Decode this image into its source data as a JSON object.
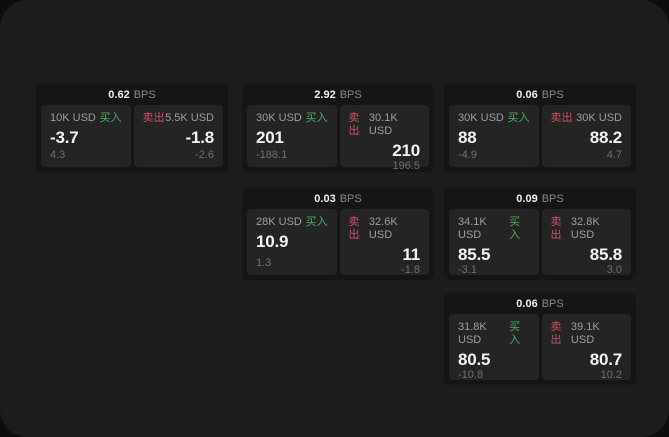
{
  "page": {
    "background": "#0d0d0d",
    "window_background": "#1c1c1c"
  },
  "labels": {
    "buy": "买入",
    "sell": "卖出",
    "bps": "BPS"
  },
  "colors": {
    "buy": "#4cae5f",
    "sell": "#cf4f66"
  },
  "cards": [
    {
      "bps": "0.62",
      "buy": {
        "amount": "10K USD",
        "value": "-3.7",
        "delta": "4.3"
      },
      "sell": {
        "amount": "5.5K USD",
        "value": "-1.8",
        "delta": "-2.6"
      }
    },
    {
      "bps": "2.92",
      "buy": {
        "amount": "30K USD",
        "value": "201",
        "delta": "-188.1"
      },
      "sell": {
        "amount": "30.1K USD",
        "value": "210",
        "delta": "196.5"
      }
    },
    {
      "bps": "0.06",
      "buy": {
        "amount": "30K USD",
        "value": "88",
        "delta": "-4.9"
      },
      "sell": {
        "amount": "30K USD",
        "value": "88.2",
        "delta": "4.7"
      }
    },
    {
      "bps": "0.03",
      "buy": {
        "amount": "28K USD",
        "value": "10.9",
        "delta": "1.3"
      },
      "sell": {
        "amount": "32.6K USD",
        "value": "11",
        "delta": "-1.8"
      }
    },
    {
      "bps": "0.09",
      "buy": {
        "amount": "34.1K USD",
        "value": "85.5",
        "delta": "-3.1"
      },
      "sell": {
        "amount": "32.8K USD",
        "value": "85.8",
        "delta": "3.0"
      }
    },
    {
      "bps": "0.06",
      "buy": {
        "amount": "31.8K USD",
        "value": "80.5",
        "delta": "-10.8"
      },
      "sell": {
        "amount": "39.1K USD",
        "value": "80.7",
        "delta": "10.2"
      }
    }
  ]
}
